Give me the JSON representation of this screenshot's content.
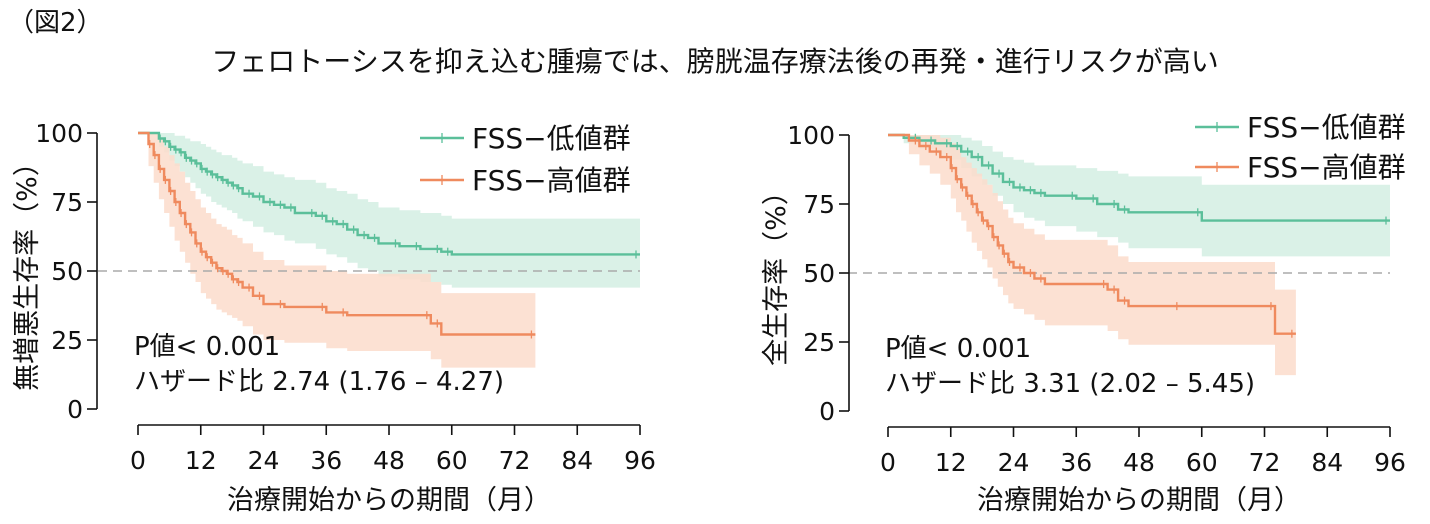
{
  "figure": {
    "label": "（図2）",
    "title": "フェロトーシスを抑え込む腫瘍では、膀胱温存療法後の再発・進行リスクが高い"
  },
  "colors": {
    "low": "#5bbf9a",
    "high": "#ef8a5e",
    "low_band": "#d3efe3",
    "high_band": "#fcdccb",
    "reference": "#aaaaaa"
  },
  "chart_data": [
    {
      "type": "line",
      "chart": "kaplan-meier",
      "ylabel": "無増悪生存率（%）",
      "xlabel": "治療開始からの期間（月）",
      "xlim": [
        0,
        96
      ],
      "ylim": [
        0,
        100
      ],
      "xticks": [
        0,
        12,
        24,
        36,
        48,
        60,
        72,
        84,
        96
      ],
      "yticks": [
        0,
        25,
        50,
        75,
        100
      ],
      "reference_line": 50,
      "legend_position": "top-right",
      "annotation": {
        "p_value": "P値< 0.001",
        "hazard_ratio": "ハザード比  2.74 (1.76 – 4.27)"
      },
      "series": [
        {
          "name": "FSS−低値群",
          "color_key": "low",
          "x": [
            0,
            4,
            5,
            6,
            7,
            8,
            9,
            10,
            11,
            12,
            13,
            14,
            15,
            16,
            17,
            18,
            19,
            20,
            22,
            24,
            26,
            28,
            30,
            34,
            36,
            38,
            40,
            42,
            44,
            46,
            50,
            54,
            58,
            60,
            96
          ],
          "y": [
            100,
            98,
            97,
            95,
            94,
            93,
            91,
            90,
            89,
            87,
            86,
            85,
            84,
            83,
            82,
            81,
            80,
            78,
            77,
            75,
            74,
            73,
            71,
            70,
            68,
            67,
            65,
            63,
            62,
            60,
            59,
            58,
            57,
            56,
            56
          ],
          "ci_lower": [
            100,
            95,
            93,
            90,
            88,
            86,
            84,
            82,
            80,
            78,
            77,
            75,
            74,
            73,
            72,
            71,
            69,
            68,
            66,
            64,
            63,
            61,
            60,
            58,
            56,
            55,
            53,
            51,
            50,
            48,
            47,
            46,
            45,
            44,
            44
          ],
          "ci_upper": [
            100,
            100,
            100,
            100,
            99,
            99,
            98,
            97,
            97,
            96,
            95,
            94,
            93,
            92,
            92,
            91,
            90,
            89,
            88,
            86,
            85,
            84,
            83,
            82,
            80,
            79,
            78,
            76,
            75,
            73,
            72,
            71,
            70,
            69,
            69
          ]
        },
        {
          "name": "FSS−高値群",
          "color_key": "high",
          "x": [
            0,
            2,
            3,
            4,
            5,
            6,
            7,
            8,
            9,
            10,
            11,
            12,
            13,
            14,
            15,
            16,
            17,
            18,
            19,
            20,
            22,
            24,
            28,
            36,
            40,
            56,
            58,
            76
          ],
          "y": [
            100,
            96,
            92,
            87,
            83,
            79,
            75,
            71,
            67,
            64,
            60,
            57,
            55,
            53,
            51,
            50,
            49,
            47,
            46,
            44,
            41,
            38,
            37,
            35,
            34,
            31,
            27,
            27
          ],
          "ci_lower": [
            100,
            88,
            82,
            76,
            71,
            66,
            61,
            57,
            53,
            49,
            46,
            42,
            40,
            38,
            36,
            35,
            34,
            33,
            32,
            30,
            27,
            25,
            24,
            22,
            21,
            18,
            15,
            15
          ],
          "ci_upper": [
            100,
            100,
            100,
            98,
            95,
            92,
            89,
            86,
            82,
            79,
            76,
            73,
            71,
            69,
            67,
            66,
            65,
            63,
            62,
            60,
            57,
            54,
            52,
            50,
            49,
            46,
            42,
            42
          ]
        }
      ]
    },
    {
      "type": "line",
      "chart": "kaplan-meier",
      "ylabel": "全生存率（%）",
      "xlabel": "治療開始からの期間（月）",
      "xlim": [
        0,
        96
      ],
      "ylim": [
        0,
        100
      ],
      "xticks": [
        0,
        12,
        24,
        36,
        48,
        60,
        72,
        84,
        96
      ],
      "yticks": [
        0,
        25,
        50,
        75,
        100
      ],
      "reference_line": 50,
      "legend_position": "top-right",
      "annotation": {
        "p_value": "P値< 0.001",
        "hazard_ratio": "ハザード比  3.31 (2.02 – 5.45)"
      },
      "series": [
        {
          "name": "FSS−低値群",
          "color_key": "low",
          "x": [
            0,
            3,
            6,
            9,
            12,
            14,
            16,
            18,
            20,
            22,
            24,
            26,
            28,
            30,
            36,
            40,
            44,
            46,
            60,
            96
          ],
          "y": [
            100,
            99,
            98,
            97,
            96,
            94,
            92,
            89,
            86,
            83,
            81,
            80,
            79,
            78,
            77,
            75,
            73,
            72,
            69,
            69
          ],
          "ci_lower": [
            100,
            97,
            95,
            93,
            91,
            88,
            85,
            82,
            78,
            75,
            72,
            70,
            69,
            67,
            65,
            63,
            61,
            59,
            56,
            56
          ],
          "ci_upper": [
            100,
            100,
            100,
            100,
            100,
            99,
            98,
            96,
            94,
            92,
            91,
            90,
            89,
            89,
            88,
            87,
            86,
            85,
            82,
            82
          ]
        },
        {
          "name": "FSS−高値群",
          "color_key": "high",
          "x": [
            0,
            4,
            6,
            8,
            10,
            12,
            13,
            14,
            15,
            16,
            17,
            18,
            19,
            20,
            21,
            22,
            23,
            24,
            26,
            28,
            30,
            42,
            44,
            46,
            56,
            74,
            78
          ],
          "y": [
            100,
            98,
            96,
            94,
            92,
            88,
            84,
            81,
            78,
            75,
            72,
            69,
            67,
            63,
            60,
            57,
            54,
            52,
            50,
            48,
            46,
            44,
            40,
            38,
            38,
            28,
            28
          ],
          "ci_lower": [
            100,
            93,
            89,
            86,
            82,
            77,
            72,
            69,
            65,
            61,
            58,
            55,
            52,
            48,
            45,
            42,
            39,
            37,
            35,
            33,
            31,
            29,
            26,
            24,
            24,
            13,
            13
          ],
          "ci_upper": [
            100,
            100,
            100,
            100,
            99,
            97,
            95,
            92,
            90,
            88,
            86,
            84,
            82,
            79,
            76,
            73,
            70,
            68,
            66,
            64,
            62,
            60,
            56,
            54,
            54,
            44,
            44
          ]
        }
      ]
    }
  ]
}
